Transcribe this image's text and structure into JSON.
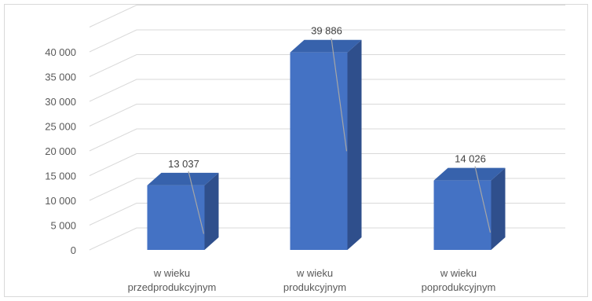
{
  "chart_data": {
    "type": "bar",
    "three_d": true,
    "categories": [
      [
        "w wieku",
        "przedprodukcyjnym"
      ],
      [
        "w wieku",
        "produkcyjnym"
      ],
      [
        "w wieku",
        "poprodukcyjnym"
      ]
    ],
    "values": [
      13037,
      39886,
      14026
    ],
    "data_labels": [
      "13 037",
      "39 886",
      "14 026"
    ],
    "y_ticks": [
      {
        "value": 0,
        "label": "0"
      },
      {
        "value": 5000,
        "label": "5 000"
      },
      {
        "value": 10000,
        "label": "10 000"
      },
      {
        "value": 15000,
        "label": "15 000"
      },
      {
        "value": 20000,
        "label": "20 000"
      },
      {
        "value": 25000,
        "label": "25 000"
      },
      {
        "value": 30000,
        "label": "30 000"
      },
      {
        "value": 35000,
        "label": "35 000"
      },
      {
        "value": 40000,
        "label": "40 000"
      },
      {
        "value": 45000,
        "label": ""
      }
    ],
    "ylim": [
      0,
      45000
    ],
    "grid": true,
    "legend": "none",
    "colors": {
      "bar_front": "#4472c4",
      "bar_side": "#2f4f8c",
      "bar_top": "#3762ac",
      "gridline": "#d9d9d9",
      "leader_line": "#a6a6a6"
    }
  }
}
